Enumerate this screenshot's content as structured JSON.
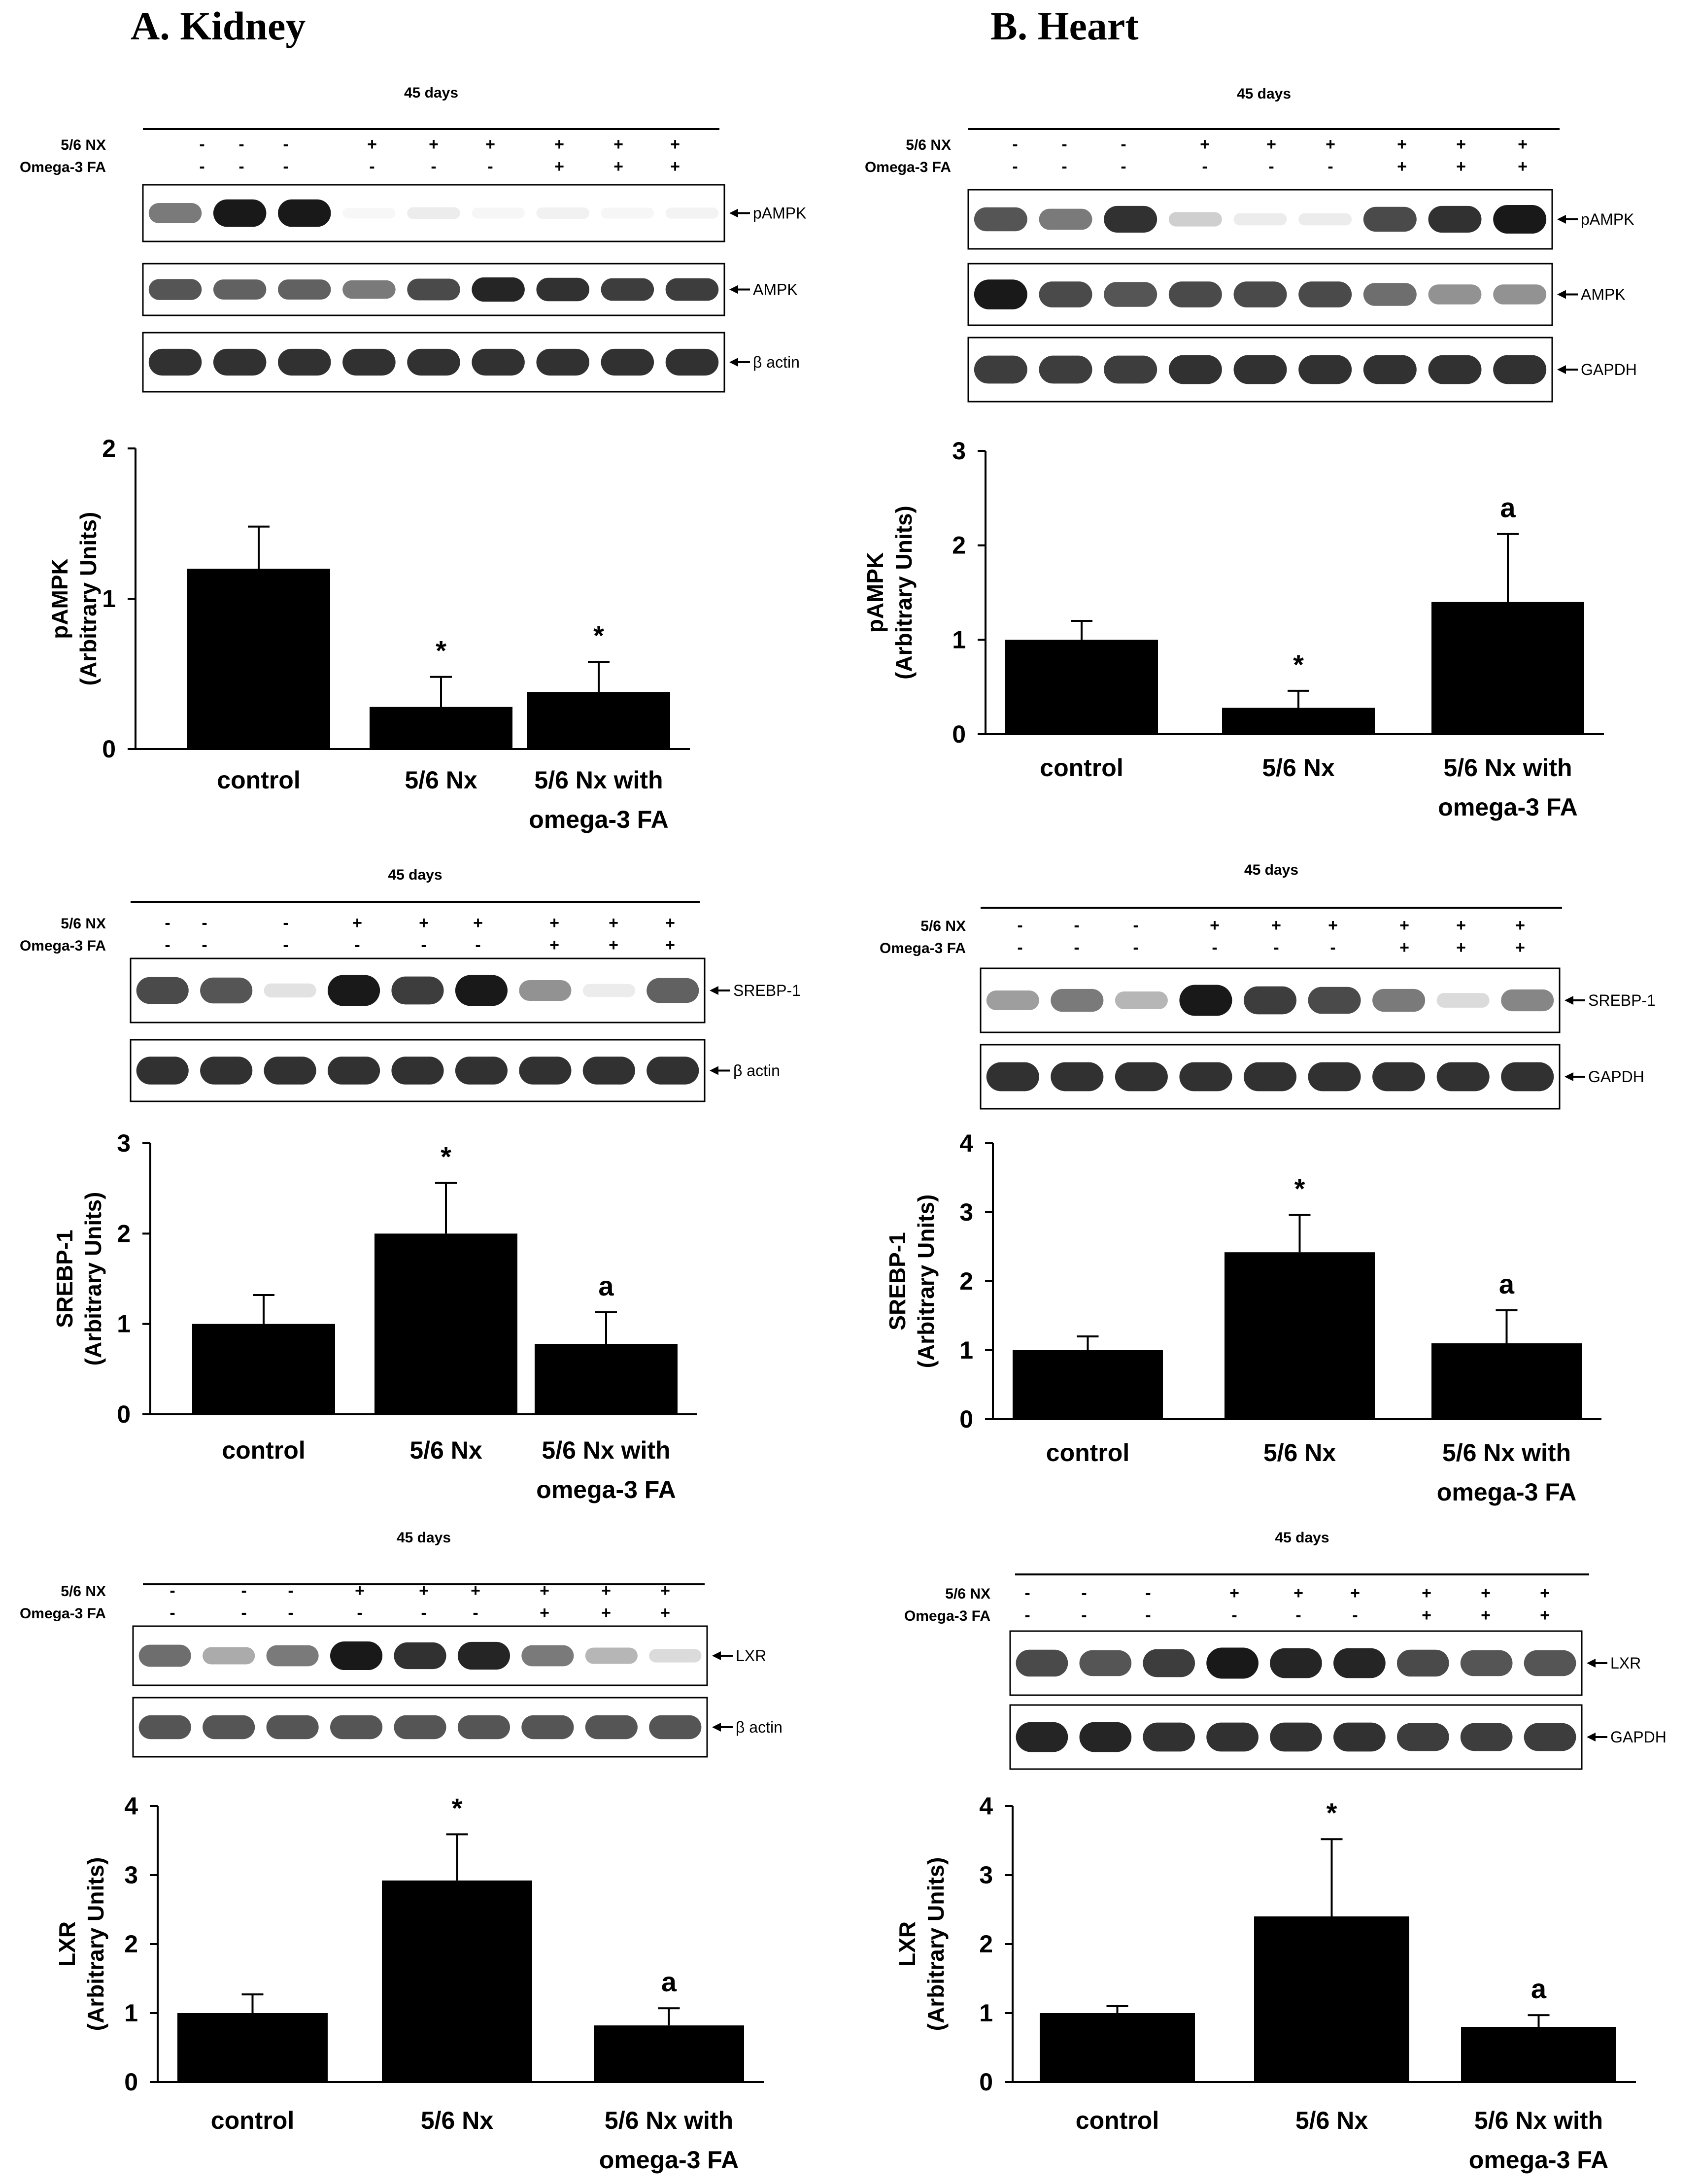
{
  "columns": [
    {
      "title": "A. Kidney",
      "tissue": "kidney"
    },
    {
      "title": "B. Heart",
      "tissue": "heart"
    }
  ],
  "blot_common": {
    "timepoint": "45 days",
    "row_labels": [
      "5/6 NX",
      "Omega-3 FA"
    ],
    "nx_signs": [
      "-",
      "-",
      "-",
      "+",
      "+",
      "+",
      "+",
      "+",
      "+"
    ],
    "omega_signs": [
      "-",
      "-",
      "-",
      "-",
      "-",
      "-",
      "+",
      "+",
      "+"
    ]
  },
  "colors": {
    "ink": "#000000",
    "background": "#ffffff",
    "band": "#0d0d0d"
  },
  "panels": [
    {
      "id": "kidney-ampk",
      "blot": {
        "bands": [
          {
            "label": "pAMPK",
            "intensity": [
              0.55,
              0.95,
              0.95,
              0.02,
              0.08,
              0.04,
              0.06,
              0.04,
              0.05
            ]
          },
          {
            "label": "AMPK",
            "intensity": [
              0.7,
              0.65,
              0.65,
              0.55,
              0.75,
              0.9,
              0.85,
              0.8,
              0.8
            ]
          },
          {
            "label": "β actin",
            "intensity": [
              0.85,
              0.85,
              0.85,
              0.85,
              0.85,
              0.85,
              0.85,
              0.85,
              0.85
            ]
          }
        ]
      },
      "chart_data": {
        "type": "bar",
        "categories": [
          "control",
          "5/6 Nx",
          "5/6 Nx with omega-3 FA"
        ],
        "values": [
          1.2,
          0.28,
          0.38
        ],
        "errors": [
          0.28,
          0.2,
          0.2
        ],
        "annotations": [
          "",
          "*",
          "*"
        ],
        "ylabel": "pAMPK (Arbitrary Units)",
        "ylim": [
          0,
          2
        ],
        "yticks": [
          0,
          1,
          2
        ],
        "grid": false,
        "legend": "none"
      }
    },
    {
      "id": "heart-ampk",
      "blot": {
        "bands": [
          {
            "label": "pAMPK",
            "intensity": [
              0.7,
              0.55,
              0.85,
              0.2,
              0.08,
              0.08,
              0.75,
              0.85,
              0.95
            ]
          },
          {
            "label": "AMPK",
            "intensity": [
              0.95,
              0.75,
              0.7,
              0.75,
              0.75,
              0.75,
              0.6,
              0.45,
              0.45
            ]
          },
          {
            "label": "GAPDH",
            "intensity": [
              0.8,
              0.8,
              0.8,
              0.85,
              0.85,
              0.85,
              0.85,
              0.85,
              0.85
            ]
          }
        ]
      },
      "chart_data": {
        "type": "bar",
        "categories": [
          "control",
          "5/6 Nx",
          "5/6 Nx with omega-3 FA"
        ],
        "values": [
          1.0,
          0.28,
          1.4
        ],
        "errors": [
          0.2,
          0.18,
          0.72
        ],
        "annotations": [
          "",
          "*",
          "a"
        ],
        "ylabel": "pAMPK (Arbitrary Units)",
        "ylim": [
          0,
          3
        ],
        "yticks": [
          0,
          1,
          2,
          3
        ],
        "grid": false,
        "legend": "none"
      }
    },
    {
      "id": "kidney-srebp",
      "blot": {
        "bands": [
          {
            "label": "SREBP-1",
            "intensity": [
              0.75,
              0.7,
              0.12,
              0.95,
              0.8,
              0.95,
              0.45,
              0.08,
              0.65
            ]
          },
          {
            "label": "β actin",
            "intensity": [
              0.85,
              0.85,
              0.85,
              0.85,
              0.85,
              0.85,
              0.85,
              0.85,
              0.85
            ]
          }
        ]
      },
      "chart_data": {
        "type": "bar",
        "categories": [
          "control",
          "5/6 Nx",
          "5/6 Nx with omega-3 FA"
        ],
        "values": [
          1.0,
          2.0,
          0.78
        ],
        "errors": [
          0.32,
          0.56,
          0.35
        ],
        "annotations": [
          "",
          "*",
          "a"
        ],
        "ylabel": "SREBP-1 (Arbitrary Units)",
        "ylim": [
          0,
          3
        ],
        "yticks": [
          0,
          1,
          2,
          3
        ],
        "grid": false,
        "legend": "none"
      }
    },
    {
      "id": "heart-srebp",
      "blot": {
        "bands": [
          {
            "label": "SREBP-1",
            "intensity": [
              0.4,
              0.55,
              0.3,
              0.95,
              0.8,
              0.75,
              0.55,
              0.15,
              0.5
            ]
          },
          {
            "label": "GAPDH",
            "intensity": [
              0.85,
              0.85,
              0.85,
              0.85,
              0.85,
              0.85,
              0.85,
              0.85,
              0.85
            ]
          }
        ]
      },
      "chart_data": {
        "type": "bar",
        "categories": [
          "control",
          "5/6 Nx",
          "5/6 Nx with omega-3 FA"
        ],
        "values": [
          1.0,
          2.42,
          1.1
        ],
        "errors": [
          0.2,
          0.54,
          0.48
        ],
        "annotations": [
          "",
          "*",
          "a"
        ],
        "ylabel": "SREBP-1 (Arbitrary Units)",
        "ylim": [
          0,
          4
        ],
        "yticks": [
          0,
          1,
          2,
          3,
          4
        ],
        "grid": false,
        "legend": "none"
      }
    },
    {
      "id": "kidney-lxr",
      "blot": {
        "bands": [
          {
            "label": "LXR",
            "intensity": [
              0.6,
              0.35,
              0.55,
              0.95,
              0.85,
              0.9,
              0.55,
              0.3,
              0.15
            ]
          },
          {
            "label": "β actin",
            "intensity": [
              0.7,
              0.7,
              0.7,
              0.7,
              0.7,
              0.7,
              0.7,
              0.7,
              0.7
            ]
          }
        ]
      },
      "chart_data": {
        "type": "bar",
        "categories": [
          "control",
          "5/6 Nx",
          "5/6 Nx with omega-3 FA"
        ],
        "values": [
          1.0,
          2.92,
          0.82
        ],
        "errors": [
          0.27,
          0.67,
          0.25
        ],
        "annotations": [
          "",
          "*",
          "a"
        ],
        "ylabel": "LXR (Arbitrary Units)",
        "ylim": [
          0,
          4
        ],
        "yticks": [
          0,
          1,
          2,
          3,
          4
        ],
        "grid": false,
        "legend": "none"
      }
    },
    {
      "id": "heart-lxr",
      "blot": {
        "bands": [
          {
            "label": "LXR",
            "intensity": [
              0.75,
              0.7,
              0.8,
              0.95,
              0.9,
              0.9,
              0.75,
              0.7,
              0.7
            ]
          },
          {
            "label": "GAPDH",
            "intensity": [
              0.9,
              0.9,
              0.85,
              0.85,
              0.85,
              0.85,
              0.8,
              0.8,
              0.8
            ]
          }
        ]
      },
      "chart_data": {
        "type": "bar",
        "categories": [
          "control",
          "5/6 Nx",
          "5/6 Nx with omega-3 FA"
        ],
        "values": [
          1.0,
          2.4,
          0.8
        ],
        "errors": [
          0.1,
          1.12,
          0.17
        ],
        "annotations": [
          "",
          "*",
          "a"
        ],
        "ylabel": "LXR (Arbitrary Units)",
        "ylim": [
          0,
          4
        ],
        "yticks": [
          0,
          1,
          2,
          3,
          4
        ],
        "grid": false,
        "legend": "none"
      }
    }
  ]
}
